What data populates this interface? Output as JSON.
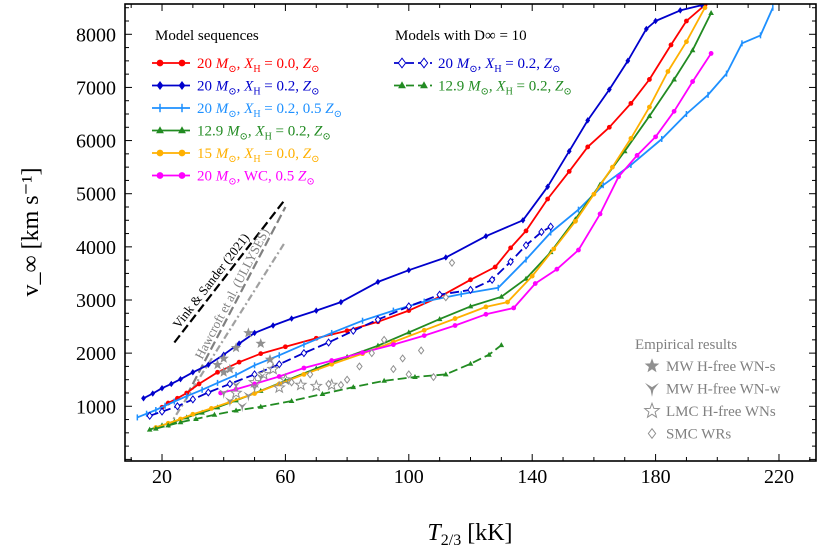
{
  "chart_data": {
    "type": "line",
    "xlabel": "T_{2/3} [kK]",
    "ylabel": "v_∞ [km s⁻¹]",
    "xlim": [
      8,
      232
    ],
    "ylim": [
      -30,
      8570
    ],
    "xticks": [
      20,
      60,
      100,
      140,
      180,
      220
    ],
    "yticks": [
      1000,
      2000,
      3000,
      4000,
      5000,
      6000,
      7000,
      8000
    ],
    "legend_model_title": "Model sequences",
    "legend_dinf_title": "Models with D∞ = 10",
    "legend_emp_title": "Empirical results",
    "series": [
      {
        "name": "20 M⊙, X_H = 0.0, Z⊙",
        "color": "#ff0000",
        "style": "solid",
        "marker": "dot",
        "legend_parts": [
          "20 ",
          "M",
          "⊙",
          ", ",
          "X",
          "H",
          " = 0.0, ",
          "Z",
          "⊙"
        ],
        "x": [
          20,
          22,
          25,
          28,
          32,
          38,
          45,
          52,
          60,
          70,
          80,
          90,
          100,
          110,
          120,
          128,
          133,
          138,
          145,
          152,
          158,
          165,
          172,
          178,
          185,
          190,
          196
        ],
        "y": [
          980,
          1060,
          1150,
          1250,
          1420,
          1640,
          1830,
          1990,
          2120,
          2280,
          2420,
          2590,
          2800,
          3060,
          3380,
          3620,
          3980,
          4300,
          4900,
          5420,
          5880,
          6250,
          6700,
          7150,
          7800,
          8250,
          8550
        ]
      },
      {
        "name": "20 M⊙, X_H = 0.2, Z⊙",
        "color": "#0000cc",
        "style": "solid",
        "marker": "diamond",
        "legend_parts": [
          "20 ",
          "M",
          "⊙",
          ", ",
          "X",
          "H",
          " = 0.2, ",
          "Z",
          "⊙"
        ],
        "x": [
          14,
          17,
          20,
          23,
          26,
          30,
          35,
          40,
          45,
          50,
          56,
          62,
          70,
          78,
          90,
          100,
          112,
          125,
          137,
          145,
          152,
          158,
          165,
          171,
          177,
          180,
          188,
          195
        ],
        "y": [
          1150,
          1240,
          1340,
          1420,
          1510,
          1640,
          1780,
          1970,
          2180,
          2380,
          2520,
          2650,
          2800,
          2960,
          3340,
          3560,
          3800,
          4200,
          4500,
          5130,
          5800,
          6380,
          6960,
          7500,
          8100,
          8250,
          8450,
          8550
        ]
      },
      {
        "name": "20 M⊙, X_H = 0.2, 0.5 Z⊙",
        "color": "#1e90ff",
        "style": "solid",
        "marker": "tick",
        "legend_parts": [
          "20 ",
          "M",
          "⊙",
          ", ",
          "X",
          "H",
          " = 0.2, 0.5 ",
          "Z",
          "⊙"
        ],
        "x": [
          12,
          15,
          18,
          21,
          24,
          28,
          33,
          38,
          44,
          50,
          58,
          66,
          75,
          85,
          95,
          105,
          117,
          129,
          138,
          146,
          155,
          163,
          172,
          182,
          190,
          197,
          203,
          208,
          214,
          218
        ],
        "y": [
          790,
          860,
          930,
          1010,
          1090,
          1190,
          1310,
          1440,
          1590,
          1770,
          1960,
          2160,
          2380,
          2610,
          2800,
          2970,
          3110,
          3230,
          3760,
          4270,
          4700,
          5160,
          5540,
          6030,
          6500,
          6860,
          7260,
          7830,
          7980,
          8500
        ]
      },
      {
        "name": "12.9 M⊙, X_H = 0.2, Z⊙",
        "color": "#228b22",
        "style": "solid",
        "marker": "triangle",
        "legend_parts": [
          "12.9 ",
          "M",
          "⊙",
          ", ",
          "X",
          "H",
          " = 0.2, ",
          "Z",
          "⊙"
        ],
        "x": [
          16,
          20,
          24,
          28,
          33,
          38,
          44,
          52,
          60,
          70,
          80,
          90,
          100,
          110,
          120,
          130,
          138,
          146,
          154,
          162,
          170,
          178,
          186,
          192,
          198
        ],
        "y": [
          560,
          640,
          710,
          790,
          880,
          980,
          1110,
          1290,
          1480,
          1710,
          1930,
          2140,
          2390,
          2640,
          2880,
          3060,
          3400,
          3900,
          4520,
          5170,
          5800,
          6460,
          7150,
          7700,
          8400
        ]
      },
      {
        "name": "15 M⊙, X_H = 0.0, Z⊙",
        "color": "#ffb000",
        "style": "solid",
        "marker": "dot",
        "legend_parts": [
          "15 ",
          "M",
          "⊙",
          ", ",
          "X",
          "H",
          " = 0.0, ",
          "Z",
          "⊙"
        ],
        "x": [
          18,
          22,
          26,
          30,
          36,
          42,
          50,
          58,
          66,
          75,
          85,
          95,
          105,
          115,
          125,
          132,
          140,
          147,
          154,
          160,
          166,
          172,
          178,
          184,
          190,
          196
        ],
        "y": [
          600,
          680,
          760,
          850,
          960,
          1080,
          1240,
          1420,
          1600,
          1790,
          1990,
          2210,
          2430,
          2650,
          2870,
          2960,
          3450,
          3960,
          4480,
          4990,
          5500,
          6040,
          6630,
          7300,
          7860,
          8500
        ]
      },
      {
        "name": "20 M⊙, WC, 0.5 Z⊙",
        "color": "#ff00ff",
        "style": "solid",
        "marker": "dot",
        "legend_parts": [
          "20 ",
          "M",
          "⊙",
          ", WC, 0.5 ",
          "Z",
          "⊙"
        ],
        "x": [
          39,
          44,
          50,
          58,
          66,
          75,
          85,
          95,
          105,
          115,
          125,
          134,
          141,
          148,
          155,
          162,
          168,
          174,
          180,
          186,
          192,
          198
        ],
        "y": [
          1250,
          1320,
          1420,
          1560,
          1720,
          1860,
          2010,
          2160,
          2330,
          2520,
          2730,
          2850,
          3310,
          3580,
          3940,
          4620,
          5320,
          5720,
          6070,
          6550,
          7110,
          7640
        ]
      },
      {
        "name": "20 M⊙, X_H = 0.2, Z⊙ (D∞ = 10)",
        "color": "#0000cc",
        "style": "dashed",
        "marker": "diamond-open",
        "legend_parts": [
          "20 ",
          "M",
          "⊙",
          ", ",
          "X",
          "H",
          " = 0.2, ",
          "Z",
          "⊙"
        ],
        "x": [
          16,
          20,
          25,
          30,
          35,
          42,
          50,
          58,
          66,
          74,
          82,
          90,
          100,
          110,
          120,
          127,
          133,
          138,
          143,
          146
        ],
        "y": [
          820,
          900,
          1000,
          1130,
          1260,
          1420,
          1600,
          1790,
          2000,
          2200,
          2420,
          2630,
          2880,
          3100,
          3190,
          3380,
          3720,
          4030,
          4280,
          4380
        ]
      },
      {
        "name": "12.9 M⊙, X_H = 0.2, Z⊙ (D∞ = 10)",
        "color": "#228b22",
        "style": "dashed",
        "marker": "triangle",
        "legend_parts": [
          "12.9 ",
          "M",
          "⊙",
          ", ",
          "X",
          "H",
          " = 0.2, ",
          "Z",
          "⊙"
        ],
        "x": [
          18,
          22,
          26,
          31,
          37,
          44,
          52,
          62,
          72,
          82,
          92,
          102,
          112,
          120,
          126,
          130
        ],
        "y": [
          580,
          640,
          700,
          760,
          840,
          920,
          990,
          1100,
          1230,
          1360,
          1480,
          1550,
          1600,
          1800,
          1970,
          2150
        ]
      }
    ],
    "reference_lines": [
      {
        "name": "Vink & Sander (2021)",
        "color": "#000000",
        "style": "dashed",
        "x": [
          24,
          60
        ],
        "y": [
          2200,
          4900
        ]
      },
      {
        "name": "Hawcroft et al. (ULLYSES)",
        "color": "#808080",
        "style": "dashed",
        "x": [
          28,
          60
        ],
        "y": [
          1200,
          4750
        ]
      },
      {
        "name": "",
        "color": "#a0a0a0",
        "style": "dashdot",
        "x": [
          22,
          60
        ],
        "y": [
          600,
          4100
        ]
      }
    ],
    "reference_labels": [
      "Vink & Sander (2021)",
      "Hawcroft et al. (ULLYSES)"
    ],
    "empirical": [
      {
        "name": "MW H-free WN-s",
        "marker": "star-filled",
        "x": [
          38,
          40,
          42,
          44,
          48,
          52,
          55,
          40
        ],
        "y": [
          1780,
          1900,
          1700,
          2100,
          2380,
          2180,
          1880,
          1640
        ]
      },
      {
        "name": "MW H-free WN-w",
        "marker": "tri-down",
        "x": [
          42,
          44,
          46,
          48,
          50,
          52,
          40
        ],
        "y": [
          1100,
          1400,
          1000,
          1200,
          1350,
          1550,
          1250
        ]
      },
      {
        "name": "LMC H-free WNs",
        "marker": "star-open",
        "x": [
          44,
          50,
          53,
          56,
          60,
          65,
          70,
          75,
          58
        ],
        "y": [
          1250,
          1450,
          1600,
          1700,
          1500,
          1400,
          1380,
          1400,
          1350
        ]
      },
      {
        "name": "SMC WRs",
        "marker": "diamond-open",
        "x": [
          62,
          68,
          74,
          78,
          80,
          84,
          88,
          92,
          95,
          98,
          100,
          104,
          108,
          112,
          114
        ],
        "y": [
          1450,
          1600,
          1420,
          1400,
          1500,
          1750,
          2000,
          2250,
          1700,
          1900,
          1600,
          2050,
          1550,
          3050,
          3700
        ]
      }
    ],
    "colors": {
      "axis": "#000000",
      "empirical": "#909090",
      "empirical_text": "#808080"
    }
  }
}
